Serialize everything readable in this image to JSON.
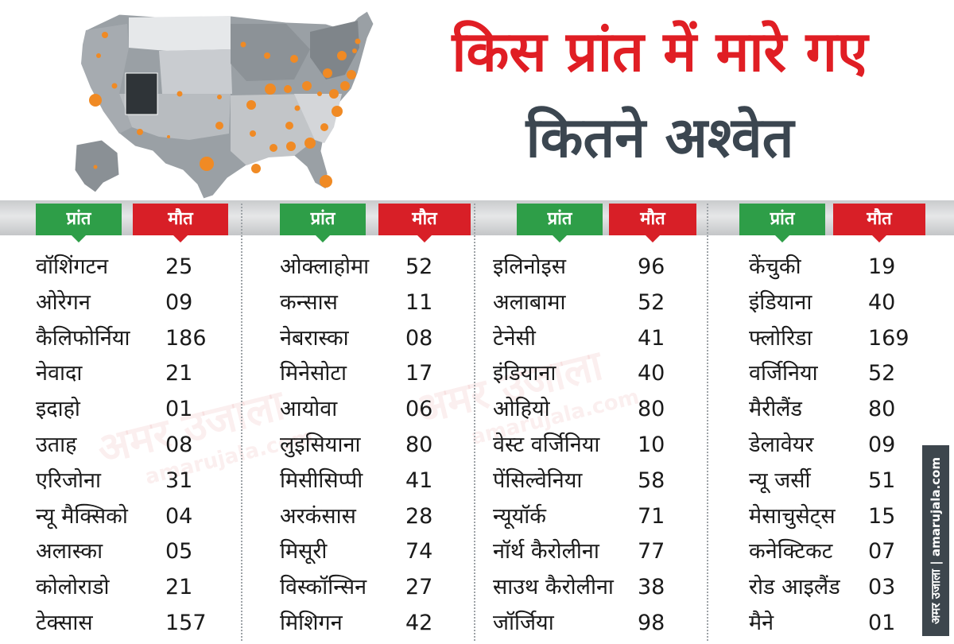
{
  "title": {
    "line1": "किस प्रांत में मारे गए",
    "line2": "कितने अश्वेत"
  },
  "headers": {
    "state": "प्रांत",
    "deaths": "मौत"
  },
  "columns": [
    {
      "rows": [
        {
          "state": "वॉशिंगटन",
          "deaths": "25"
        },
        {
          "state": "ओरेगन",
          "deaths": "09"
        },
        {
          "state": "कैलिफोर्निया",
          "deaths": "186"
        },
        {
          "state": "नेवादा",
          "deaths": "21"
        },
        {
          "state": "इदाहो",
          "deaths": "01"
        },
        {
          "state": "उताह",
          "deaths": "08"
        },
        {
          "state": "एरिजोना",
          "deaths": "31"
        },
        {
          "state": "न्यू मैक्सिको",
          "deaths": "04"
        },
        {
          "state": "अलास्का",
          "deaths": "05"
        },
        {
          "state": "कोलोराडो",
          "deaths": "21"
        },
        {
          "state": "टेक्सास",
          "deaths": "157"
        }
      ]
    },
    {
      "rows": [
        {
          "state": "ओक्लाहोमा",
          "deaths": "52"
        },
        {
          "state": "कन्सास",
          "deaths": "11"
        },
        {
          "state": "नेबरास्का",
          "deaths": "08"
        },
        {
          "state": "मिनेसोटा",
          "deaths": "17"
        },
        {
          "state": "आयोवा",
          "deaths": "06"
        },
        {
          "state": "लुइसियाना",
          "deaths": "80"
        },
        {
          "state": "मिसीसिप्पी",
          "deaths": "41"
        },
        {
          "state": "अरकंसास",
          "deaths": "28"
        },
        {
          "state": "मिसूरी",
          "deaths": "74"
        },
        {
          "state": "विस्कॉन्सिन",
          "deaths": "27"
        },
        {
          "state": "मिशिगन",
          "deaths": "42"
        }
      ]
    },
    {
      "rows": [
        {
          "state": "इलिनोइस",
          "deaths": "96"
        },
        {
          "state": "अलाबामा",
          "deaths": "52"
        },
        {
          "state": "टेनेसी",
          "deaths": "41"
        },
        {
          "state": "इंडियाना",
          "deaths": "40"
        },
        {
          "state": "ओहियो",
          "deaths": "80"
        },
        {
          "state": "वेस्ट वर्जिनिया",
          "deaths": "10"
        },
        {
          "state": "पेंसिल्वेनिया",
          "deaths": "58"
        },
        {
          "state": "न्यूयॉर्क",
          "deaths": "71"
        },
        {
          "state": "नॉर्थ कैरोलीना",
          "deaths": "77"
        },
        {
          "state": "साउथ कैरोलीना",
          "deaths": "38"
        },
        {
          "state": "जॉर्जिया",
          "deaths": "98"
        }
      ]
    },
    {
      "rows": [
        {
          "state": "केंचुकी",
          "deaths": "19"
        },
        {
          "state": "इंडियाना",
          "deaths": "40"
        },
        {
          "state": "फ्लोरिडा",
          "deaths": "169"
        },
        {
          "state": "वर्जिनिया",
          "deaths": "52"
        },
        {
          "state": "मैरीलैंड",
          "deaths": "80"
        },
        {
          "state": "डेलावेयर",
          "deaths": "09"
        },
        {
          "state": "न्यू जर्सी",
          "deaths": "51"
        },
        {
          "state": "मेसाचुसेट्स",
          "deaths": "15"
        },
        {
          "state": "कनेक्टिकट",
          "deaths": "07"
        },
        {
          "state": "रोड आइलैंड",
          "deaths": "03"
        },
        {
          "state": "मैने",
          "deaths": "01"
        }
      ]
    }
  ],
  "branding": {
    "side_label": "अमर उजाला | amarujala.com",
    "watermark_hindi": "अमर उजाला",
    "watermark_url": "amarujala.com"
  },
  "colors": {
    "title_red": "#e01e24",
    "title_dark": "#3b4650",
    "header_green": "#2e9e48",
    "header_red": "#d81f27",
    "bubble_orange": "#f08a24",
    "utah_highlight": "#2f3438"
  }
}
